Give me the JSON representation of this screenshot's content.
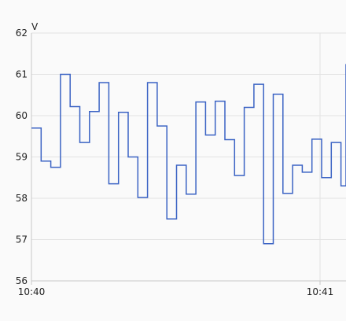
{
  "chart_data": {
    "type": "line",
    "step": true,
    "unit_label": "V",
    "x_tick_labels": [
      "10:40",
      "10:41"
    ],
    "y_tick_labels": [
      "56",
      "57",
      "58",
      "59",
      "60",
      "61",
      "62"
    ],
    "ylim": [
      56,
      62
    ],
    "grid": true,
    "series": [
      {
        "color": "#3b63c4",
        "values": [
          59.7,
          58.9,
          58.75,
          61.0,
          60.22,
          59.35,
          60.1,
          60.8,
          58.35,
          60.08,
          59.0,
          58.02,
          60.8,
          59.75,
          57.5,
          58.8,
          58.1,
          60.33,
          59.53,
          60.35,
          59.42,
          58.55,
          60.2,
          60.76,
          56.9,
          60.52,
          58.12,
          58.8,
          58.63,
          59.43,
          58.5,
          59.35,
          58.3,
          61.25
        ]
      }
    ]
  },
  "colors": {
    "grid": "#e3e3e3",
    "axis": "#c8c8c8",
    "background": "#fafafa"
  }
}
